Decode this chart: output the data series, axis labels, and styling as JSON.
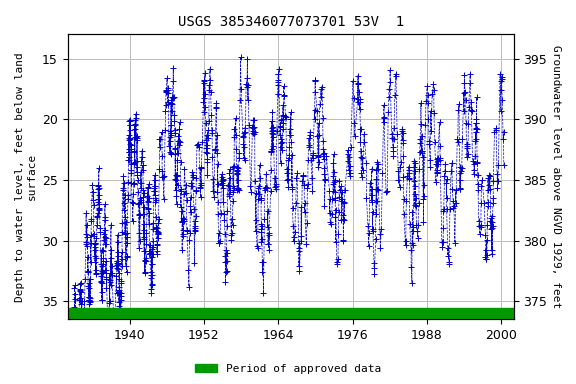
{
  "title": "USGS 385346077073701 53V  1",
  "ylabel_left": "Depth to water level, feet below land\nsurface",
  "ylabel_right": "Groundwater level above NGVD 1929, feet",
  "legend_label": "Period of approved data",
  "legend_color": "#009900",
  "data_color": "#0000cc",
  "background_color": "#ffffff",
  "plot_bg_color": "#ffffff",
  "grid_color": "#bbbbbb",
  "xlim": [
    1930,
    2002
  ],
  "ylim_left": [
    36.5,
    13.0
  ],
  "ylim_right": [
    373.5,
    397.0
  ],
  "xticks": [
    1940,
    1952,
    1964,
    1976,
    1988,
    2000
  ],
  "yticks_left": [
    15,
    20,
    25,
    30,
    35
  ],
  "yticks_right": [
    375,
    380,
    385,
    390,
    395
  ],
  "title_fontsize": 10,
  "axis_label_fontsize": 8,
  "tick_fontsize": 9,
  "marker": "+",
  "marker_size": 4,
  "line_style": "--",
  "line_width": 0.5,
  "seed": 42,
  "n_points": 1500
}
